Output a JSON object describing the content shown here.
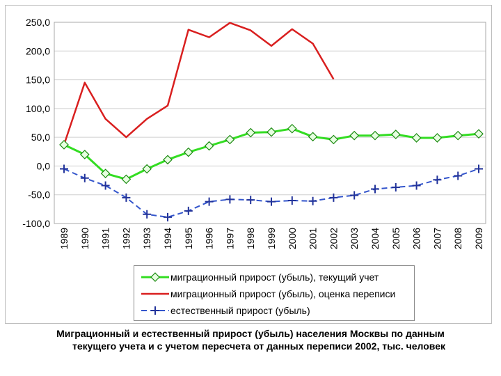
{
  "chart_data": {
    "type": "line",
    "title": "",
    "xlabel": "",
    "ylabel": "",
    "ylim": [
      -100,
      250
    ],
    "y_ticks": [
      "-100,0",
      "-50,0",
      "0,0",
      "50,0",
      "100,0",
      "150,0",
      "200,0",
      "250,0"
    ],
    "y_tick_values": [
      -100,
      -50,
      0,
      50,
      100,
      150,
      200,
      250
    ],
    "grid": true,
    "categories": [
      "1989",
      "1990",
      "1991",
      "1992",
      "1993",
      "1994",
      "1995",
      "1996",
      "1997",
      "1998",
      "1999",
      "2000",
      "2001",
      "2002",
      "2003",
      "2004",
      "2005",
      "2006",
      "2007",
      "2008",
      "2009"
    ],
    "series": [
      {
        "name": "миграционный прирост (убыль), текущий учет",
        "color": "#33dd22",
        "marker": "diamond",
        "dash": "solid",
        "values": [
          37,
          20,
          -13,
          -23,
          -5,
          11,
          24,
          35,
          46,
          58,
          59,
          65,
          51,
          46,
          53,
          53,
          55,
          49,
          49,
          53,
          56
        ]
      },
      {
        "name": "миграционный прирост (убыль), оценка переписи",
        "color": "#d91f1f",
        "marker": "none",
        "dash": "solid",
        "values": [
          37,
          145,
          82,
          50,
          82,
          105,
          237,
          224,
          249,
          236,
          209,
          238,
          213,
          151,
          null,
          null,
          null,
          null,
          null,
          null,
          null
        ]
      },
      {
        "name": "естественный прирост (убыль)",
        "color": "#3355cc",
        "marker": "plus",
        "dash": "dashed",
        "values": [
          -5,
          -21,
          -34,
          -55,
          -84,
          -89,
          -78,
          -62,
          -58,
          -59,
          -62,
          -60,
          -61,
          -55,
          -51,
          -40,
          -37,
          -34,
          -24,
          -17,
          -5
        ]
      }
    ],
    "legend_position": "bottom"
  },
  "caption": {
    "line1": "Миграционный и естественный прирост (убыль) населения Москвы по данным",
    "line2": "текущего учета и с учетом пересчета от данных переписи 2002, тыс. человек"
  }
}
